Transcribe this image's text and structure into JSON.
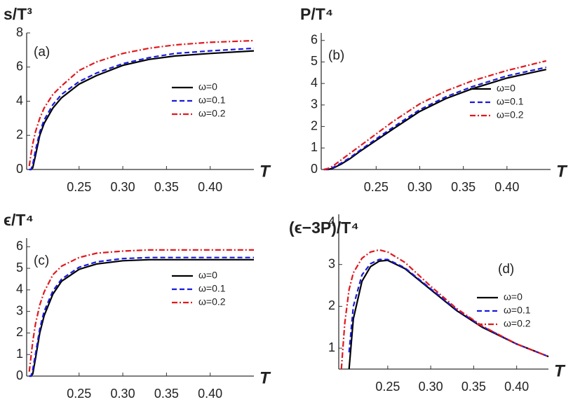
{
  "chart_data": [
    {
      "type": "line",
      "ylabel": "s/T³",
      "xlabel": "T",
      "annotation": "(a)",
      "x": [
        0.193,
        0.195,
        0.197,
        0.2,
        0.205,
        0.21,
        0.22,
        0.23,
        0.25,
        0.27,
        0.3,
        0.33,
        0.36,
        0.4,
        0.45
      ],
      "series": [
        {
          "name": "ω=0",
          "color": "#000000",
          "values": [
            0,
            0,
            0.1,
            0.8,
            2.0,
            2.7,
            3.6,
            4.2,
            5.0,
            5.5,
            6.1,
            6.45,
            6.65,
            6.8,
            6.95
          ]
        },
        {
          "name": "ω=0.1",
          "color": "#1a1adb",
          "values": [
            0,
            0,
            0.3,
            1.1,
            2.2,
            2.9,
            3.8,
            4.4,
            5.15,
            5.65,
            6.2,
            6.55,
            6.8,
            6.95,
            7.1
          ]
        },
        {
          "name": "ω=0.2",
          "color": "#e0191e",
          "values": [
            0.2,
            0.9,
            1.5,
            2.2,
            3.0,
            3.6,
            4.4,
            4.9,
            5.8,
            6.3,
            6.8,
            7.1,
            7.3,
            7.45,
            7.55
          ]
        }
      ],
      "xlim": [
        0.19,
        0.45
      ],
      "ylim": [
        0,
        8
      ],
      "xticks": [
        0.25,
        {
          "value": 0.3,
          "label": "0.30"
        },
        0.35,
        {
          "value": 0.4,
          "label": "0.40"
        }
      ],
      "yticks": [
        0,
        2,
        4,
        6,
        8
      ]
    },
    {
      "type": "line",
      "ylabel": "P/T⁴",
      "xlabel": "T",
      "annotation": "(b)",
      "x": [
        0.19,
        0.195,
        0.2,
        0.21,
        0.22,
        0.23,
        0.25,
        0.27,
        0.3,
        0.33,
        0.36,
        0.4,
        0.445
      ],
      "series": [
        {
          "name": "ω=0",
          "color": "#000000",
          "values": [
            0,
            0,
            0.05,
            0.25,
            0.5,
            0.8,
            1.35,
            1.9,
            2.7,
            3.3,
            3.75,
            4.25,
            4.65
          ]
        },
        {
          "name": "ω=0.1",
          "color": "#1a1adb",
          "values": [
            0,
            0.01,
            0.08,
            0.3,
            0.55,
            0.85,
            1.42,
            1.98,
            2.78,
            3.38,
            3.85,
            4.35,
            4.75
          ]
        },
        {
          "name": "ω=0.2",
          "color": "#e0191e",
          "values": [
            0,
            0.05,
            0.15,
            0.45,
            0.75,
            1.05,
            1.65,
            2.25,
            3.05,
            3.65,
            4.12,
            4.6,
            5.05
          ]
        }
      ],
      "xlim": [
        0.187,
        0.45
      ],
      "ylim": [
        0,
        6.35
      ],
      "xticks": [
        0.25,
        {
          "value": 0.3,
          "label": "0.30"
        },
        0.35,
        {
          "value": 0.4,
          "label": "0.40"
        }
      ],
      "yticks": [
        0,
        1,
        2,
        3,
        4,
        5,
        6
      ]
    },
    {
      "type": "line",
      "ylabel": "ϵ/T⁴",
      "xlabel": "T",
      "annotation": "(c)",
      "x": [
        0.193,
        0.195,
        0.197,
        0.2,
        0.205,
        0.21,
        0.22,
        0.23,
        0.25,
        0.27,
        0.3,
        0.33,
        0.36,
        0.4,
        0.45
      ],
      "series": [
        {
          "name": "ω=0",
          "color": "#000000",
          "values": [
            0,
            0,
            0.1,
            0.8,
            2.0,
            2.8,
            3.8,
            4.4,
            4.95,
            5.2,
            5.35,
            5.4,
            5.4,
            5.4,
            5.4
          ]
        },
        {
          "name": "ω=0.1",
          "color": "#1a1adb",
          "values": [
            0,
            0,
            0.3,
            1.0,
            2.2,
            3.0,
            3.95,
            4.5,
            5.05,
            5.3,
            5.45,
            5.5,
            5.5,
            5.5,
            5.5
          ]
        },
        {
          "name": "ω=0.2",
          "color": "#e0191e",
          "values": [
            0.2,
            0.9,
            1.6,
            2.4,
            3.3,
            3.9,
            4.7,
            5.1,
            5.5,
            5.7,
            5.8,
            5.85,
            5.85,
            5.85,
            5.85
          ]
        }
      ],
      "xlim": [
        0.19,
        0.45
      ],
      "ylim": [
        0,
        6.4
      ],
      "xticks": [
        0.25,
        {
          "value": 0.3,
          "label": "0.30"
        },
        0.35,
        {
          "value": 0.4,
          "label": "0.40"
        }
      ],
      "yticks": [
        0,
        1,
        2,
        3,
        4,
        5,
        6
      ]
    },
    {
      "type": "line",
      "ylabel": "(ϵ−3P)/T⁴",
      "xlabel": "T",
      "annotation": "(d)",
      "x": [
        0.196,
        0.2,
        0.205,
        0.21,
        0.22,
        0.23,
        0.24,
        0.25,
        0.27,
        0.3,
        0.33,
        0.36,
        0.4,
        0.437
      ],
      "series": [
        {
          "name": "ω=0",
          "color": "#000000",
          "values": [
            null,
            null,
            0.5,
            1.7,
            2.6,
            2.95,
            3.08,
            3.1,
            2.9,
            2.4,
            1.9,
            1.5,
            1.1,
            0.8
          ]
        },
        {
          "name": "ω=0.1",
          "color": "#1a1adb",
          "values": [
            null,
            null,
            0.9,
            2.0,
            2.75,
            3.02,
            3.12,
            3.12,
            2.92,
            2.42,
            1.92,
            1.52,
            1.1,
            0.8
          ]
        },
        {
          "name": "ω=0.2",
          "color": "#e0191e",
          "values": [
            0.5,
            1.6,
            2.4,
            2.8,
            3.15,
            3.3,
            3.35,
            3.3,
            3.05,
            2.48,
            1.95,
            1.53,
            1.1,
            0.8
          ]
        }
      ],
      "xlim": [
        0.193,
        0.437
      ],
      "ylim": [
        0.5,
        4.2
      ],
      "xticks": [
        0.25,
        {
          "value": 0.3,
          "label": "0.30"
        },
        0.35,
        {
          "value": 0.4,
          "label": "0.40"
        }
      ],
      "yticks": [
        1,
        2,
        3,
        4
      ]
    }
  ]
}
